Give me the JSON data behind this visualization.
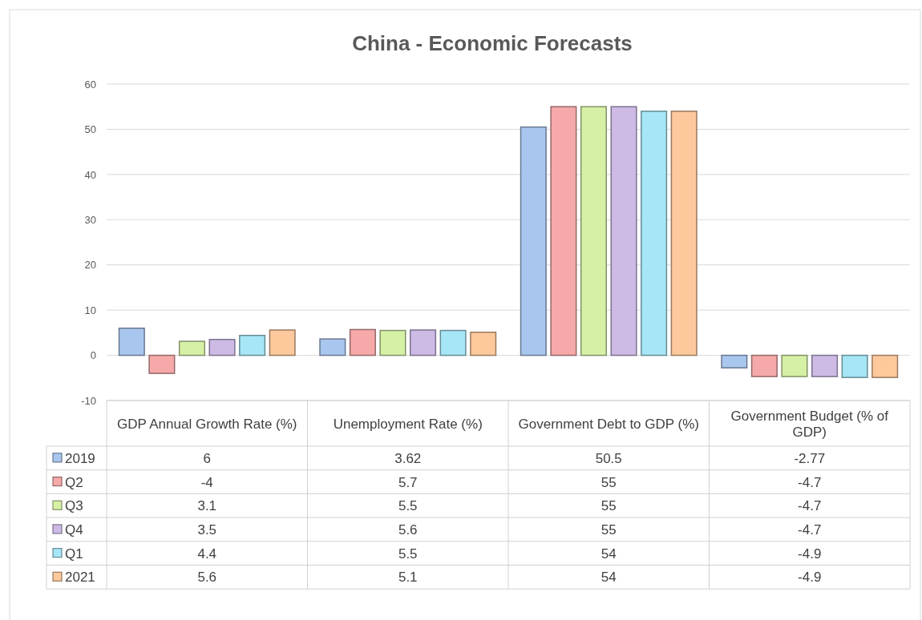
{
  "chart_data": {
    "type": "bar",
    "title": "China - Economic Forecasts",
    "categories": [
      "GDP Annual Growth Rate (%)",
      "Unemployment Rate (%)",
      "Government Debt to GDP (%)",
      "Government Budget (% of GDP)"
    ],
    "series": [
      {
        "name": "2019",
        "color": "#a9c6ee",
        "values": [
          6,
          3.62,
          50.5,
          -2.77
        ]
      },
      {
        "name": "Q2",
        "color": "#f5a9a9",
        "values": [
          -4,
          5.7,
          55,
          -4.7
        ]
      },
      {
        "name": "Q3",
        "color": "#d6f0a6",
        "values": [
          3.1,
          5.5,
          55,
          -4.7
        ]
      },
      {
        "name": "Q4",
        "color": "#cdbbe6",
        "values": [
          3.5,
          5.6,
          55,
          -4.7
        ]
      },
      {
        "name": "Q1",
        "color": "#a6e6f6",
        "values": [
          4.4,
          5.5,
          54,
          -4.9
        ]
      },
      {
        "name": "2021",
        "color": "#fcc89c",
        "values": [
          5.6,
          5.1,
          54,
          -4.9
        ]
      }
    ],
    "ylim": [
      -10,
      60
    ],
    "yticks": [
      -10,
      0,
      10,
      20,
      30,
      40,
      50,
      60
    ],
    "grid": "y",
    "data_labels": true,
    "legend": "bottom"
  }
}
